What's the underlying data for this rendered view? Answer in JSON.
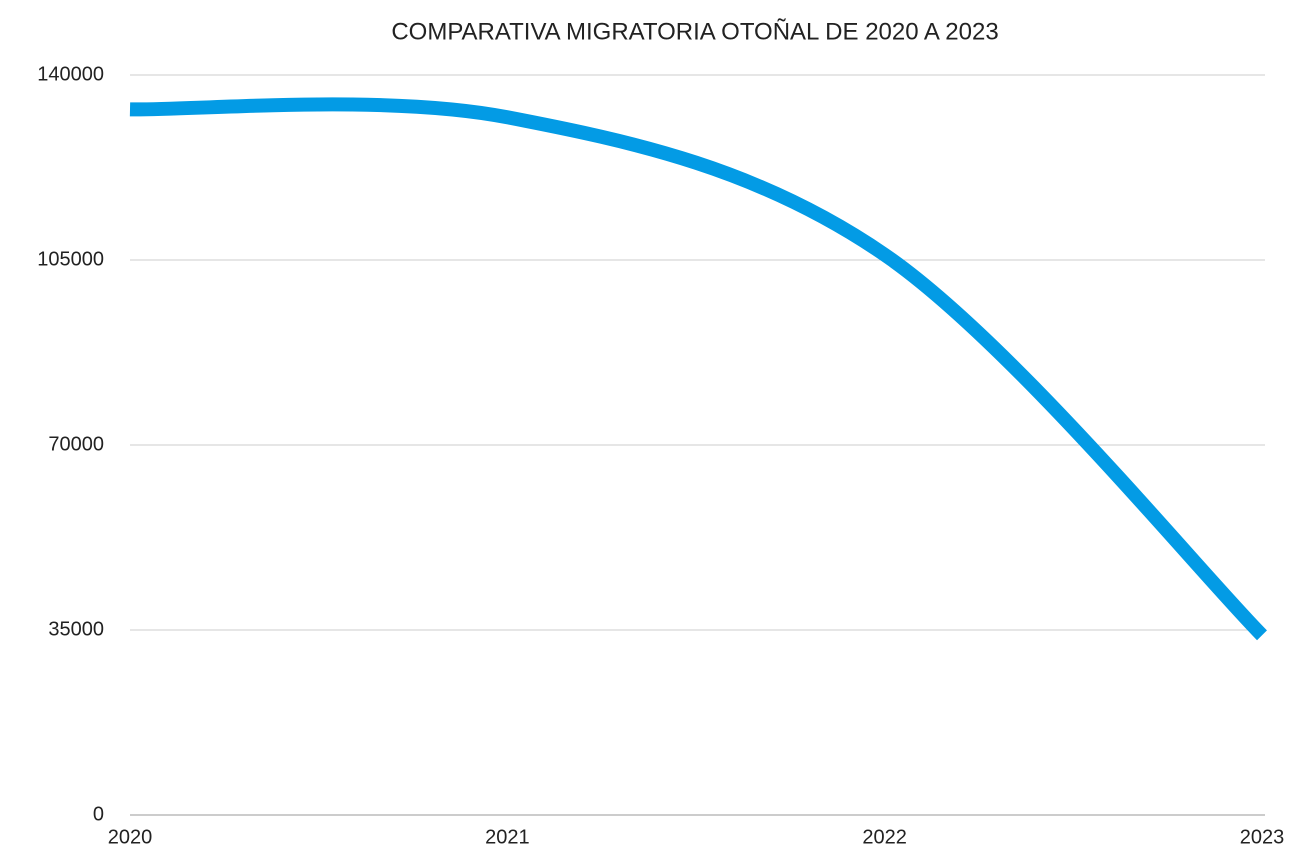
{
  "chart_data": {
    "type": "line",
    "title": "COMPARATIVA MIGRATORIA OTOÑAL DE 2020 A 2023",
    "categories": [
      "2020",
      "2021",
      "2022",
      "2023"
    ],
    "series": [
      {
        "color": "#039be5",
        "values": [
          133500,
          132000,
          106000,
          34000
        ]
      }
    ],
    "ylim": [
      0,
      140000
    ],
    "yticks": [
      0,
      35000,
      70000,
      105000,
      140000
    ],
    "grid": true,
    "smooth": true
  }
}
